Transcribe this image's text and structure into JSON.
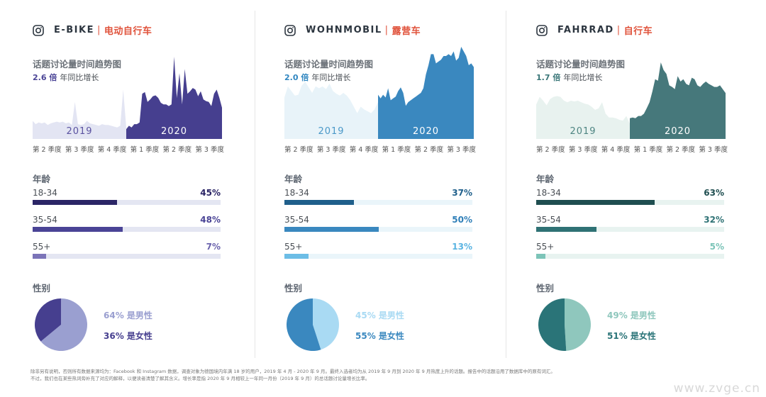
{
  "chart_data": [
    {
      "type": "area",
      "title_en": "E-BIKE",
      "title_cn": "电动自行车",
      "trend_title": "话题讨论量时间趋势图",
      "multiplier": "2.6 倍",
      "multiplier_label": "年同比增长",
      "x_tick_labels": [
        "第 2 季度",
        "第 3 季度",
        "第 4 季度",
        "第 1 季度",
        "第 2 季度",
        "第 3 季度"
      ],
      "series": [
        {
          "name": "2019",
          "values": [
            22,
            18,
            20,
            19,
            20,
            17,
            19,
            20,
            21,
            20,
            21,
            19,
            20,
            17,
            45,
            18,
            17,
            18,
            22,
            19,
            18,
            17,
            16,
            18,
            17,
            17,
            16,
            15,
            14,
            16,
            60,
            14
          ]
        },
        {
          "name": "2020",
          "values": [
            12,
            16,
            14,
            18,
            18,
            20,
            55,
            57,
            45,
            48,
            52,
            53,
            50,
            44,
            42,
            42,
            40,
            42,
            100,
            50,
            80,
            42,
            85,
            55,
            58,
            62,
            60,
            52,
            58,
            48,
            46,
            45,
            40,
            55,
            60,
            50,
            38
          ]
        }
      ],
      "colors": {
        "light": "#e3e5f3",
        "dark": "#463f8f",
        "year_light": "#5a52a0",
        "year_dark": "#ffffff",
        "accent": "#4a4496",
        "track": "#e4e6f2"
      },
      "age_title": "年龄",
      "age": [
        {
          "label": "18-34",
          "value": 45,
          "pct": "45%",
          "color": "#2b2566",
          "text_color": "#2b2566"
        },
        {
          "label": "35-54",
          "value": 48,
          "pct": "48%",
          "color": "#4a4496",
          "text_color": "#4a4496"
        },
        {
          "label": "55+",
          "value": 7,
          "pct": "7%",
          "color": "#7b74b8",
          "text_color": "#6a63ad"
        }
      ],
      "gender_title": "性别",
      "gender": [
        {
          "label": "64% 是男性",
          "value": 64,
          "color": "#9a9fd0"
        },
        {
          "label": "36% 是女性",
          "value": 36,
          "color": "#463f8f"
        }
      ]
    },
    {
      "type": "area",
      "title_en": "WOHNMOBIL",
      "title_cn": "露营车",
      "trend_title": "话题讨论量时间趋势图",
      "multiplier": "2.0 倍",
      "multiplier_label": "年同比增长",
      "x_tick_labels": [
        "第 2 季度",
        "第 3 季度",
        "第 4 季度",
        "第 1 季度",
        "第 2 季度",
        "第 3 季度"
      ],
      "series": [
        {
          "name": "2019",
          "values": [
            45,
            57,
            52,
            47,
            48,
            58,
            62,
            56,
            50,
            57,
            55,
            57,
            54,
            60,
            52,
            49,
            47,
            50,
            47,
            42,
            35,
            28,
            35,
            32,
            30,
            28,
            32,
            40
          ]
        },
        {
          "name": "2020",
          "values": [
            48,
            44,
            48,
            45,
            55,
            42,
            44,
            46,
            52,
            56,
            50,
            36,
            40,
            42,
            44,
            46,
            48,
            50,
            55,
            70,
            80,
            92,
            92,
            82,
            84,
            86,
            90,
            90,
            92,
            90,
            95,
            85,
            88,
            100,
            95,
            90,
            80,
            82,
            78
          ]
        }
      ],
      "colors": {
        "light": "#e8f3f9",
        "dark": "#3a88bf",
        "year_light": "#4a98c8",
        "year_dark": "#ffffff",
        "accent": "#2f86c0",
        "track": "#eaf5fa"
      },
      "age_title": "年龄",
      "age": [
        {
          "label": "18-34",
          "value": 37,
          "pct": "37%",
          "color": "#1f5f8b",
          "text_color": "#1f5f8b"
        },
        {
          "label": "35-54",
          "value": 50,
          "pct": "50%",
          "color": "#3a88bf",
          "text_color": "#2f7fb8"
        },
        {
          "label": "55+",
          "value": 13,
          "pct": "13%",
          "color": "#6cbde6",
          "text_color": "#5ab4e2"
        }
      ],
      "gender_title": "性别",
      "gender": [
        {
          "label": "45% 是男性",
          "value": 45,
          "color": "#a9daf3"
        },
        {
          "label": "55% 是女性",
          "value": 55,
          "color": "#3a88bf"
        }
      ]
    },
    {
      "type": "area",
      "title_en": "FAHRRAD",
      "title_cn": "自行车",
      "trend_title": "话题讨论量时间趋势图",
      "multiplier": "1.7 倍",
      "multiplier_label": "年同比增长",
      "x_tick_labels": [
        "第 2 季度",
        "第 3 季度",
        "第 4 季度",
        "第 1 季度",
        "第 2 季度",
        "第 3 季度"
      ],
      "series": [
        {
          "name": "2019",
          "values": [
            45,
            55,
            50,
            44,
            52,
            55,
            56,
            55,
            50,
            48,
            50,
            49,
            50,
            48,
            46,
            45,
            42,
            38,
            40,
            48,
            33,
            28,
            28,
            27,
            25,
            24,
            30,
            20
          ]
        },
        {
          "name": "2020",
          "values": [
            27,
            28,
            27,
            30,
            30,
            33,
            40,
            48,
            62,
            78,
            76,
            100,
            90,
            85,
            70,
            68,
            65,
            82,
            75,
            78,
            72,
            70,
            80,
            78,
            70,
            68,
            72,
            75,
            72,
            70,
            68,
            68,
            70,
            65,
            60
          ]
        }
      ],
      "colors": {
        "light": "#e8f2ef",
        "dark": "#46787b",
        "year_light": "#4e8582",
        "year_dark": "#ffffff",
        "accent": "#3a7678",
        "track": "#e8f3f0"
      },
      "age_title": "年龄",
      "age": [
        {
          "label": "18-34",
          "value": 63,
          "pct": "63%",
          "color": "#1f4e50",
          "text_color": "#1f4e50"
        },
        {
          "label": "35-54",
          "value": 32,
          "pct": "32%",
          "color": "#2f7275",
          "text_color": "#2f7275"
        },
        {
          "label": "55+",
          "value": 5,
          "pct": "5%",
          "color": "#7cc4b8",
          "text_color": "#7cc4b8"
        }
      ],
      "gender_title": "性别",
      "gender": [
        {
          "label": "49% 是男性",
          "value": 49,
          "color": "#8fc7bd"
        },
        {
          "label": "51% 是女性",
          "value": 51,
          "color": "#2a7478"
        }
      ]
    }
  ],
  "footer": {
    "line1": "除非另有说明，否则所有数据来源均为：Facebook 和 Instagram 数据，调查对象为德国境内年满 18 岁的用户，2019 年 4 月 - 2020 年 9 月。最终入选者均为从 2019 年 9 月到 2020 年 9 月热度上升的话题。报告中的话题沿用了数据库中的原有词汇。",
    "line2": "不过，我们也在某些热词旁补充了对应的解释，以便读者清楚了解其含义。增长率是指 2020 年 9 月相较上一年同一月份（2019 年 9 月）的总话题讨论量增长比率。"
  },
  "watermark": "www.zvge.cn",
  "icons": {
    "platform": "instagram-icon"
  }
}
